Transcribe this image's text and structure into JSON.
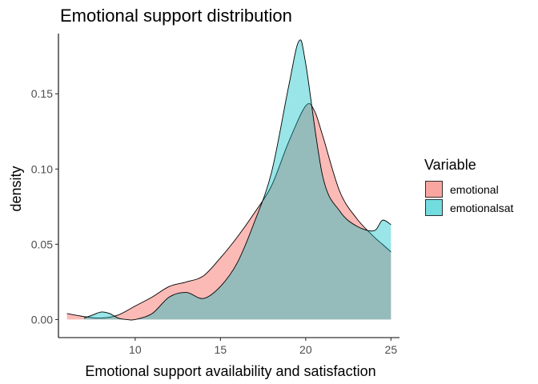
{
  "chart_data": {
    "type": "area",
    "title": "Emotional support distribution",
    "xlabel": "Emotional support availability and satisfaction",
    "ylabel": "density",
    "xlim": [
      5.5,
      25.5
    ],
    "ylim": [
      -0.012,
      0.19
    ],
    "x_ticks": [
      10,
      15,
      20,
      25
    ],
    "x_tick_labels": [
      "10",
      "15",
      "20",
      "25"
    ],
    "y_ticks": [
      0.0,
      0.05,
      0.1,
      0.15
    ],
    "y_tick_labels": [
      "0.00",
      "0.05",
      "0.10",
      "0.15"
    ],
    "grid": false,
    "legend_position": "right",
    "legend_title": "Variable",
    "series": [
      {
        "name": "emotional",
        "color": "#F8766D",
        "opacity": 0.5,
        "x": [
          6,
          7,
          8,
          9,
          10,
          11,
          12,
          13,
          14,
          15,
          16,
          17,
          18,
          19,
          20,
          20.5,
          21,
          22,
          23,
          24,
          24.5,
          25
        ],
        "y": [
          0.004,
          0.002,
          0.001,
          0.003,
          0.009,
          0.015,
          0.022,
          0.025,
          0.029,
          0.041,
          0.055,
          0.071,
          0.089,
          0.118,
          0.142,
          0.139,
          0.122,
          0.085,
          0.067,
          0.055,
          0.05,
          0.045
        ]
      },
      {
        "name": "emotionalsat",
        "color": "#00BFC4",
        "opacity": 0.4,
        "x": [
          7,
          7.5,
          8,
          8.5,
          9,
          9.5,
          10,
          11,
          12,
          13,
          14,
          15,
          16,
          17,
          18,
          19,
          19.6,
          20,
          21,
          22,
          23,
          24,
          24.5,
          25
        ],
        "y": [
          0.001,
          0.003,
          0.005,
          0.004,
          0.001,
          0.0,
          0.0,
          0.004,
          0.015,
          0.018,
          0.014,
          0.022,
          0.038,
          0.065,
          0.098,
          0.155,
          0.185,
          0.17,
          0.095,
          0.072,
          0.062,
          0.059,
          0.066,
          0.063
        ]
      }
    ]
  }
}
